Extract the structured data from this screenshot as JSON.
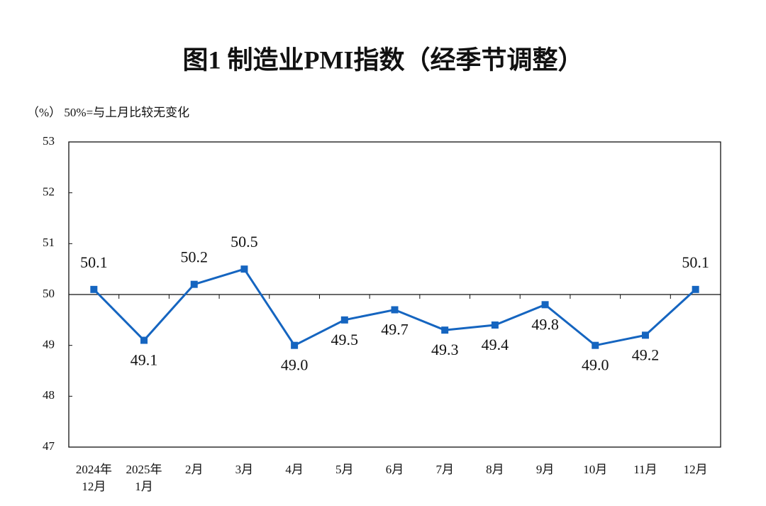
{
  "chart_data": {
    "type": "line",
    "title": "图1  制造业PMI指数（经季节调整）",
    "note": "（%） 50%=与上月比较无变化",
    "categories": [
      "2024年\n12月",
      "2025年\n1月",
      "2月",
      "3月",
      "4月",
      "5月",
      "6月",
      "7月",
      "8月",
      "9月",
      "10月",
      "11月",
      "12月"
    ],
    "series": [
      {
        "name": "制造业PMI",
        "color": "#1565c0",
        "values": [
          50.1,
          49.1,
          50.2,
          50.5,
          49.0,
          49.5,
          49.7,
          49.3,
          49.4,
          49.8,
          49.0,
          49.2,
          50.1
        ],
        "value_labels": [
          "50.1",
          "49.1",
          "50.2",
          "50.5",
          "49.0",
          "49.5",
          "49.7",
          "49.3",
          "49.4",
          "49.8",
          "49.0",
          "49.2",
          "50.1"
        ]
      }
    ],
    "ylim": [
      47,
      53
    ],
    "yticks": [
      47,
      48,
      49,
      50,
      51,
      52,
      53
    ],
    "reference_line": 50
  }
}
